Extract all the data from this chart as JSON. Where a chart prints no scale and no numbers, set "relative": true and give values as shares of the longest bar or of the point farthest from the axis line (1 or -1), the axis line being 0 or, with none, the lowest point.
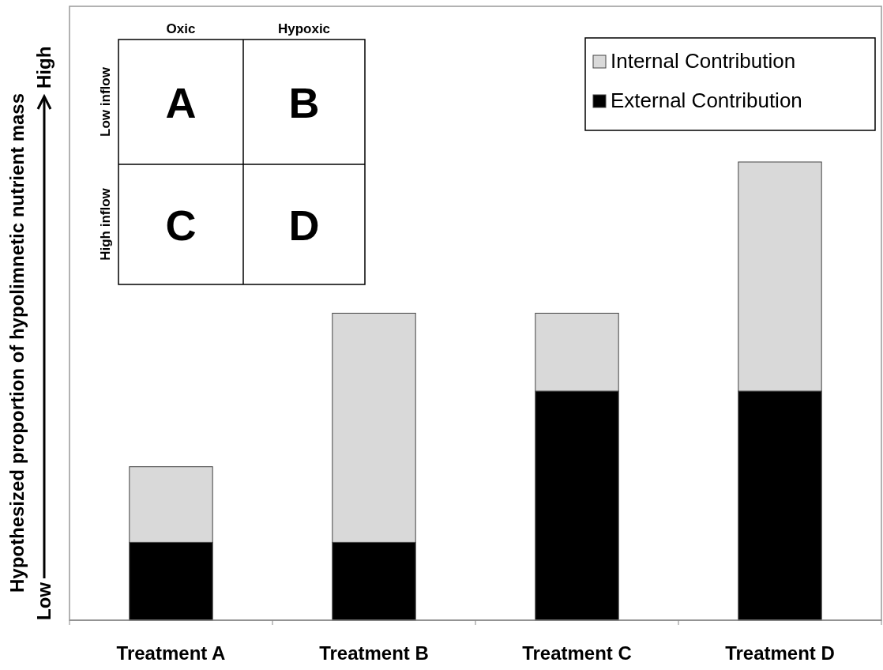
{
  "chart_data": {
    "type": "bar",
    "stacked": true,
    "relative": true,
    "ylabel": "Hypothesized proportion of hypolimnetic nutrient mass",
    "categories": [
      "Treatment A",
      "Treatment B",
      "Treatment C",
      "Treatment D"
    ],
    "series": [
      {
        "name": "External Contribution",
        "color": "#000000",
        "values": [
          0.17,
          0.17,
          0.5,
          0.5
        ]
      },
      {
        "name": "Internal Contribution",
        "color": "#d9d9d9",
        "values": [
          0.165,
          0.5,
          0.17,
          0.5
        ]
      }
    ],
    "legend": "top right",
    "annotations": [
      "Low",
      "High",
      "Oxic",
      "Hypoxic",
      "Low inflow",
      "High inflow",
      "A",
      "B",
      "C",
      "D"
    ]
  }
}
